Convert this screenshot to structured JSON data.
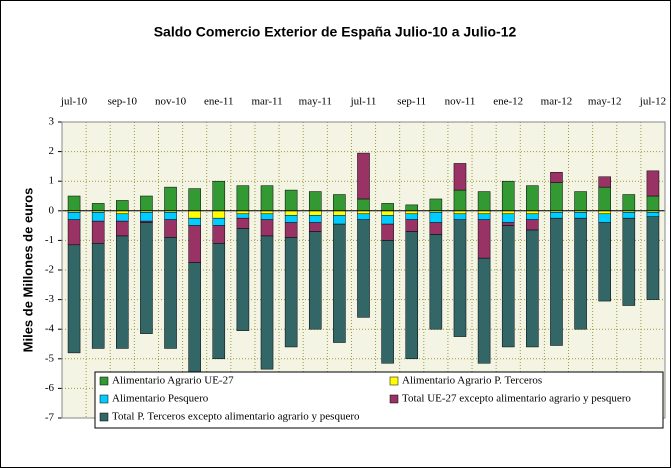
{
  "chart_data": {
    "type": "stacked-bar",
    "title": "Saldo Comercio Exterior de España Julio-10 a Julio-12",
    "y_label": "Miles de Millones de euros",
    "categories": [
      "jul-10",
      null,
      "sep-10",
      null,
      "nov-10",
      null,
      "ene-11",
      null,
      "mar-11",
      null,
      "may-11",
      null,
      "jul-11",
      null,
      "sep-11",
      null,
      "nov-11",
      null,
      "ene-12",
      null,
      "mar-12",
      null,
      "may-12",
      null,
      "jul-12"
    ],
    "series": [
      {
        "name": "Alimentario Agrario UE-27",
        "color": "#339933",
        "values": [
          0.5,
          0.25,
          0.35,
          0.5,
          0.8,
          0.75,
          1.0,
          0.85,
          0.85,
          0.7,
          0.65,
          0.55,
          0.4,
          0.25,
          0.2,
          0.4,
          0.7,
          0.65,
          1.0,
          0.85,
          0.95,
          0.65,
          0.8,
          0.55,
          0.5
        ]
      },
      {
        "name": "Alimentario Agrario P. Terceros",
        "color": "#ffff00",
        "values": [
          -0.05,
          -0.05,
          -0.1,
          -0.05,
          -0.05,
          -0.25,
          -0.25,
          -0.1,
          -0.1,
          -0.15,
          -0.15,
          -0.15,
          -0.1,
          -0.15,
          -0.1,
          -0.05,
          -0.1,
          -0.1,
          -0.1,
          -0.1,
          -0.05,
          -0.05,
          -0.1,
          -0.05,
          -0.05
        ]
      },
      {
        "name": "Alimentario Pesquero",
        "color": "#00ccff",
        "values": [
          -0.25,
          -0.3,
          -0.25,
          -0.3,
          -0.25,
          -0.25,
          -0.25,
          -0.15,
          -0.2,
          -0.25,
          -0.25,
          -0.3,
          -0.2,
          -0.3,
          -0.2,
          -0.35,
          -0.2,
          -0.2,
          -0.3,
          -0.2,
          -0.2,
          -0.2,
          -0.3,
          -0.2,
          -0.15
        ]
      },
      {
        "name": "Total UE-27 excepto alimentario agrario y pesquero",
        "color": "#993366",
        "values": [
          -0.85,
          -0.75,
          -0.5,
          -0.05,
          -0.6,
          -1.25,
          -0.6,
          -0.35,
          -0.55,
          -0.5,
          -0.3,
          0,
          1.55,
          -0.55,
          -0.4,
          -0.4,
          0.9,
          -1.3,
          -0.1,
          -0.35,
          0.35,
          0,
          0.35,
          0,
          0.85
        ]
      },
      {
        "name": "Total P. Terceros excepto alimentario agrario y pesquero",
        "color": "#336666",
        "values": [
          -3.65,
          -3.55,
          -3.8,
          -3.75,
          -3.75,
          -3.85,
          -3.9,
          -3.45,
          -4.5,
          -3.7,
          -3.3,
          -4.0,
          -3.3,
          -4.15,
          -4.3,
          -3.2,
          -3.95,
          -3.55,
          -4.1,
          -3.95,
          -4.3,
          -3.75,
          -2.65,
          -2.95,
          -2.8
        ]
      }
    ],
    "ylim": [
      -7,
      3
    ],
    "yticks": [
      -7,
      -6,
      -5,
      -4,
      -3,
      -2,
      -1,
      0,
      1,
      2,
      3
    ],
    "grid": true,
    "legend": "bottom"
  }
}
